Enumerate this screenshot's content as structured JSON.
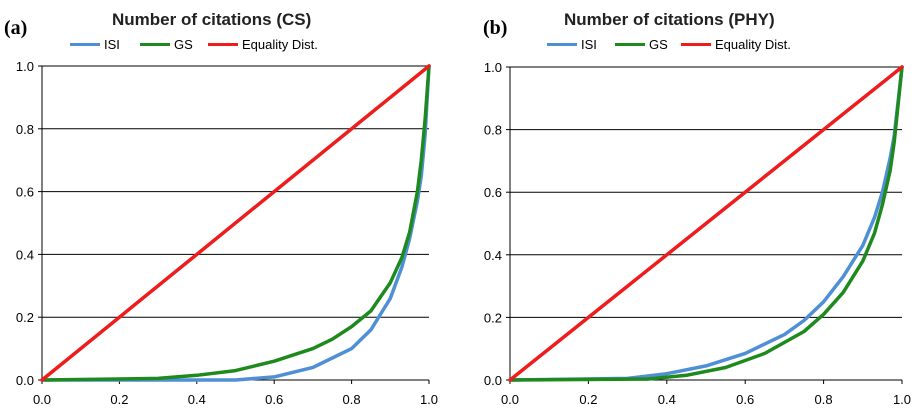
{
  "chart_data": [
    {
      "type": "line",
      "panel_label": "(a)",
      "title": "Number of citations (CS)",
      "xlabel": "",
      "ylabel": "",
      "xlim": [
        0.0,
        1.0
      ],
      "ylim": [
        0.0,
        1.0
      ],
      "x_ticks": [
        "0.0",
        "0.2",
        "0.4",
        "0.6",
        "0.8",
        "1.0"
      ],
      "y_ticks": [
        "0.0",
        "0.2",
        "0.4",
        "0.6",
        "0.8",
        "1.0"
      ],
      "grid": "horizontal",
      "legend_position": "top",
      "series": [
        {
          "name": "ISI",
          "color": "#4f8fd6",
          "x": [
            0,
            0.5,
            0.6,
            0.7,
            0.75,
            0.8,
            0.85,
            0.9,
            0.93,
            0.95,
            0.97,
            0.98,
            0.99,
            1.0
          ],
          "y": [
            0,
            0.0,
            0.01,
            0.04,
            0.07,
            0.1,
            0.16,
            0.26,
            0.36,
            0.45,
            0.57,
            0.65,
            0.78,
            1.0
          ]
        },
        {
          "name": "GS",
          "color": "#1e8a1e",
          "x": [
            0,
            0.3,
            0.4,
            0.5,
            0.6,
            0.7,
            0.75,
            0.8,
            0.85,
            0.9,
            0.93,
            0.95,
            0.97,
            0.98,
            0.99,
            1.0
          ],
          "y": [
            0,
            0.005,
            0.015,
            0.03,
            0.06,
            0.1,
            0.13,
            0.17,
            0.22,
            0.31,
            0.39,
            0.47,
            0.6,
            0.7,
            0.83,
            1.0
          ]
        },
        {
          "name": "Equality Dist.",
          "color": "#ee1c1c",
          "x": [
            0,
            1.0
          ],
          "y": [
            0,
            1.0
          ]
        }
      ]
    },
    {
      "type": "line",
      "panel_label": "(b)",
      "title": "Number of citations (PHY)",
      "xlabel": "",
      "ylabel": "",
      "xlim": [
        0.0,
        1.0
      ],
      "ylim": [
        0.0,
        1.0
      ],
      "x_ticks": [
        "0.0",
        "0.2",
        "0.4",
        "0.6",
        "0.8",
        "1.0"
      ],
      "y_ticks": [
        "0.0",
        "0.2",
        "0.4",
        "0.6",
        "0.8",
        "1.0"
      ],
      "grid": "horizontal",
      "legend_position": "top",
      "series": [
        {
          "name": "ISI",
          "color": "#4f8fd6",
          "x": [
            0,
            0.3,
            0.4,
            0.5,
            0.6,
            0.7,
            0.75,
            0.8,
            0.85,
            0.9,
            0.93,
            0.95,
            0.97,
            0.98,
            1.0
          ],
          "y": [
            0,
            0.005,
            0.02,
            0.045,
            0.085,
            0.145,
            0.19,
            0.25,
            0.33,
            0.43,
            0.52,
            0.6,
            0.71,
            0.78,
            1.0
          ]
        },
        {
          "name": "GS",
          "color": "#1e8a1e",
          "x": [
            0,
            0.35,
            0.45,
            0.55,
            0.65,
            0.75,
            0.8,
            0.85,
            0.9,
            0.93,
            0.95,
            0.97,
            0.98,
            1.0
          ],
          "y": [
            0,
            0.003,
            0.015,
            0.04,
            0.085,
            0.155,
            0.21,
            0.28,
            0.38,
            0.47,
            0.56,
            0.67,
            0.76,
            1.0
          ]
        },
        {
          "name": "Equality Dist.",
          "color": "#ee1c1c",
          "x": [
            0,
            1.0
          ],
          "y": [
            0,
            1.0
          ]
        }
      ]
    }
  ]
}
